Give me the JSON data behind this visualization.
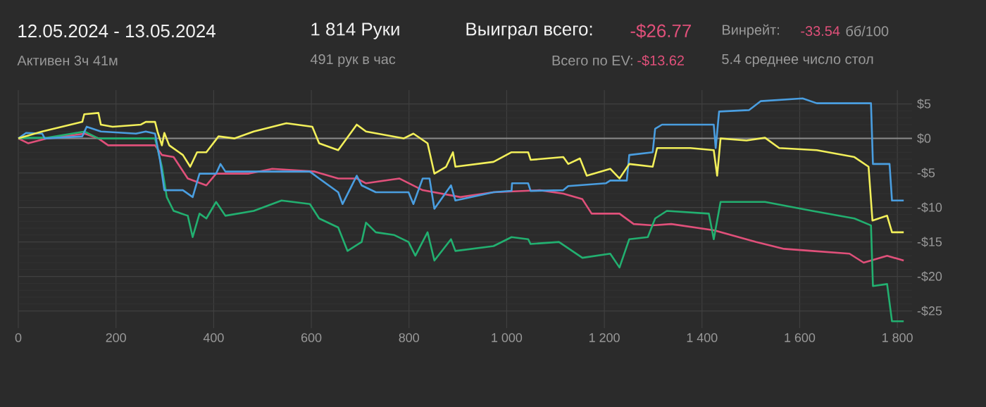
{
  "chart_data": {
    "type": "line",
    "title": "12.05.2024 - 13.05.2024",
    "subtitle": "Активен 3ч 41м",
    "annotations": [
      "1 814 Руки",
      "491 рук в час",
      "Выиграл всего:",
      "-$26.77",
      "Винрейт:",
      "-33.54",
      "бб/100",
      "Всего по EV:",
      "-$13.62",
      "5.4 среднее число стол"
    ],
    "series": [
      {
        "color": "#e0507a",
        "x": [
          0,
          20,
          59,
          136,
          164,
          184,
          280,
          294,
          318,
          347,
          385,
          405,
          472,
          520,
          607,
          655,
          693,
          712,
          780,
          828,
          905,
          973,
          1068,
          1116,
          1155,
          1174,
          1231,
          1260,
          1299,
          1337,
          1424,
          1510,
          1568,
          1626,
          1702,
          1731,
          1779,
          1813
        ],
        "values": [
          0,
          -0.7,
          0,
          0.7,
          0,
          -1.0,
          -1.0,
          -2.4,
          -2.7,
          -5.8,
          -6.8,
          -5.1,
          -5.1,
          -4.4,
          -4.8,
          -5.8,
          -5.8,
          -6.5,
          -5.8,
          -7.5,
          -8.5,
          -7.8,
          -7.5,
          -8.0,
          -8.8,
          -10.9,
          -10.9,
          -12.4,
          -12.6,
          -12.4,
          -13.3,
          -15.0,
          -16.0,
          -16.3,
          -16.7,
          -18.0,
          -17.0,
          -17.7
        ]
      },
      {
        "color": "#22b070",
        "x": [
          0,
          20,
          59,
          136,
          164,
          184,
          280,
          294,
          304,
          318,
          347,
          357,
          371,
          385,
          405,
          424,
          482,
          539,
          597,
          616,
          655,
          674,
          703,
          712,
          732,
          770,
          799,
          813,
          838,
          852,
          886,
          895,
          973,
          1010,
          1044,
          1049,
          1107,
          1155,
          1212,
          1231,
          1251,
          1289,
          1304,
          1328,
          1414,
          1424,
          1438,
          1529,
          1626,
          1712,
          1746,
          1750,
          1779,
          1789,
          1813
        ],
        "values": [
          0,
          0.1,
          0.1,
          1.0,
          0,
          0,
          0,
          -4.1,
          -8.5,
          -10.5,
          -11.2,
          -14.3,
          -10.9,
          -11.6,
          -9.2,
          -11.2,
          -10.5,
          -9.0,
          -9.5,
          -11.6,
          -12.9,
          -16.3,
          -15.0,
          -12.2,
          -13.6,
          -14.0,
          -15.0,
          -17.0,
          -13.6,
          -17.7,
          -14.6,
          -16.3,
          -15.6,
          -14.3,
          -14.6,
          -15.3,
          -15.0,
          -17.3,
          -16.7,
          -18.7,
          -14.6,
          -14.3,
          -11.6,
          -10.5,
          -10.9,
          -14.6,
          -9.2,
          -9.2,
          -10.5,
          -11.6,
          -12.6,
          -21.4,
          -21.1,
          -26.5,
          -26.5
        ]
      },
      {
        "color": "#4a9ee0",
        "x": [
          0,
          16,
          49,
          54,
          131,
          140,
          169,
          241,
          261,
          280,
          290,
          299,
          337,
          357,
          371,
          405,
          414,
          424,
          597,
          616,
          655,
          664,
          693,
          703,
          732,
          799,
          809,
          828,
          842,
          852,
          886,
          895,
          973,
          1010,
          1011,
          1044,
          1049,
          1116,
          1126,
          1203,
          1212,
          1246,
          1251,
          1299,
          1304,
          1318,
          1424,
          1428,
          1435,
          1496,
          1520,
          1606,
          1635,
          1746,
          1750,
          1784,
          1789,
          1813
        ],
        "values": [
          0,
          0.8,
          0.7,
          0,
          0.3,
          1.7,
          1.0,
          0.7,
          1.0,
          0.7,
          -3.1,
          -7.5,
          -7.5,
          -8.5,
          -5.1,
          -5.1,
          -3.7,
          -4.8,
          -4.8,
          -5.8,
          -7.8,
          -9.5,
          -5.4,
          -6.8,
          -7.8,
          -7.8,
          -9.5,
          -5.8,
          -5.8,
          -10.2,
          -6.8,
          -9.0,
          -7.8,
          -7.6,
          -6.5,
          -6.5,
          -7.6,
          -7.5,
          -6.9,
          -6.5,
          -6.1,
          -6.1,
          -2.4,
          -2.0,
          1.4,
          2.0,
          2.0,
          -1.4,
          3.9,
          4.1,
          5.4,
          5.8,
          5.1,
          5.1,
          -3.7,
          -3.7,
          -9.0,
          -9.0
        ]
      },
      {
        "color": "#f2ef5a",
        "x": [
          0,
          49,
          131,
          135,
          164,
          169,
          193,
          251,
          261,
          280,
          285,
          294,
          299,
          309,
          337,
          352,
          366,
          385,
          410,
          443,
          482,
          549,
          602,
          616,
          655,
          693,
          712,
          789,
          809,
          838,
          852,
          876,
          890,
          895,
          973,
          1010,
          1044,
          1049,
          1116,
          1126,
          1150,
          1164,
          1212,
          1231,
          1251,
          1299,
          1308,
          1376,
          1424,
          1431,
          1438,
          1491,
          1529,
          1558,
          1635,
          1712,
          1741,
          1749,
          1779,
          1789,
          1813
        ],
        "values": [
          0,
          1.0,
          2.4,
          3.5,
          3.7,
          2.0,
          1.7,
          2.0,
          2.4,
          2.4,
          1.0,
          -1.0,
          0.8,
          -1.0,
          -2.4,
          -4.1,
          -2.0,
          -2.0,
          0.3,
          0,
          1.0,
          2.2,
          1.7,
          -0.7,
          -1.7,
          2.0,
          1.0,
          0,
          0.7,
          -0.7,
          -5.1,
          -4.1,
          -2.0,
          -4.1,
          -3.4,
          -2.0,
          -2.0,
          -3.1,
          -2.7,
          -3.7,
          -2.9,
          -5.4,
          -4.4,
          -5.8,
          -3.7,
          -4.1,
          -1.4,
          -1.4,
          -1.7,
          -5.4,
          0,
          -0.3,
          0.1,
          -1.4,
          -1.7,
          -2.7,
          -4.1,
          -11.9,
          -11.2,
          -13.6,
          -13.6
        ]
      }
    ],
    "xlim": [
      0,
      1830
    ],
    "ylim": [
      -27.5,
      7
    ],
    "xticks": [
      0,
      200,
      400,
      600,
      800,
      {
        "value": 1000,
        "label": "1 000"
      },
      {
        "value": 1200,
        "label": "1 200"
      },
      {
        "value": 1400,
        "label": "1 400"
      },
      {
        "value": 1600,
        "label": "1 600"
      },
      {
        "value": 1800,
        "label": "1 800"
      }
    ],
    "yticks": [
      {
        "value": 5,
        "label": "$5"
      },
      {
        "value": 0,
        "label": "$0"
      },
      {
        "value": -5,
        "label": "-$5"
      },
      {
        "value": -10,
        "label": "-$10"
      },
      {
        "value": -15,
        "label": "-$15"
      },
      {
        "value": -20,
        "label": "-$20"
      },
      {
        "value": -25,
        "label": "-$25"
      }
    ],
    "ref_lines": [
      {
        "axis": "y",
        "value": 0,
        "color": "#8a8a8a"
      }
    ],
    "grid": true,
    "marker": "none",
    "line_style": "solid"
  }
}
